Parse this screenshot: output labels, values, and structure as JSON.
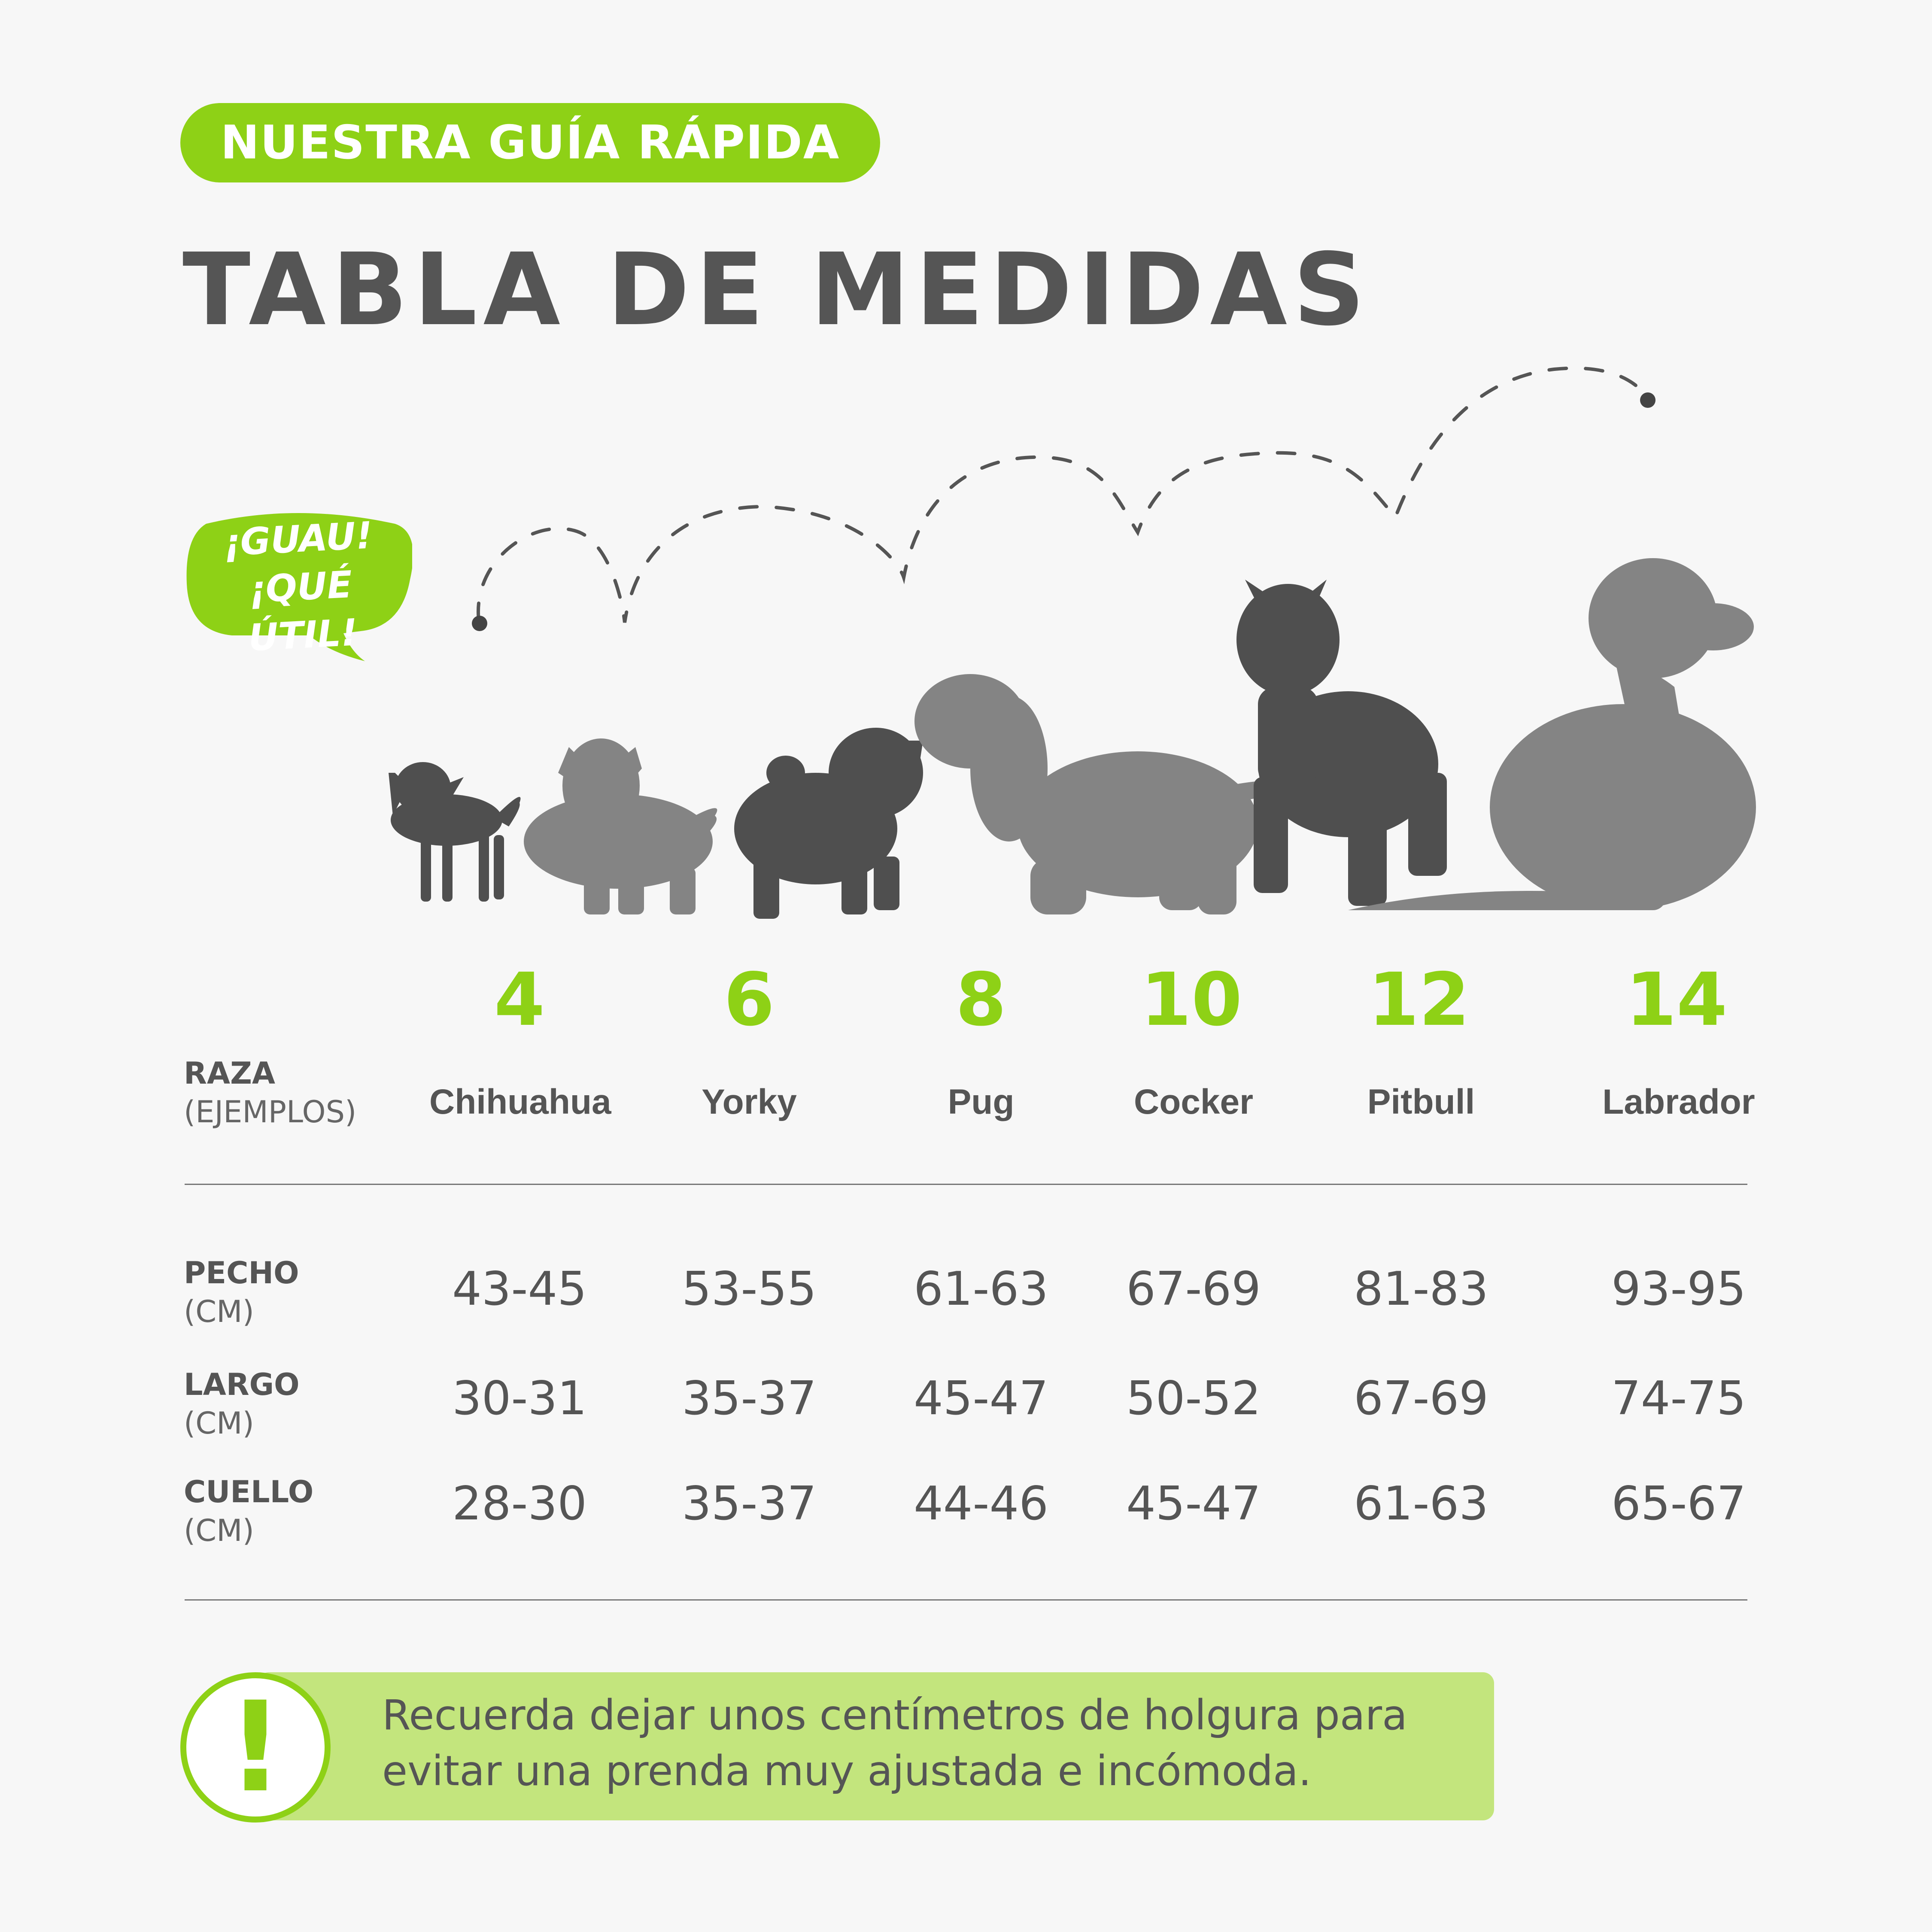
{
  "header": {
    "pill": "NUESTRA GUÍA RÁPIDA",
    "title": "TABLA DE MEDIDAS"
  },
  "bubble": {
    "line1": "¡GUAU!",
    "line2": "¡QUÉ ÚTIL!"
  },
  "sizes": [
    "4",
    "6",
    "8",
    "10",
    "12",
    "14"
  ],
  "raza": {
    "label": "RAZA",
    "sub": "(EJEMPLOS)",
    "breeds": [
      "Chihuahua",
      "Yorky",
      "Pug",
      "Cocker",
      "Pitbull",
      "Labrador"
    ]
  },
  "rows": [
    {
      "label": "PECHO",
      "unit": "(CM)",
      "values": [
        "43-45",
        "53-55",
        "61-63",
        "67-69",
        "81-83",
        "93-95"
      ]
    },
    {
      "label": "LARGO",
      "unit": "(CM)",
      "values": [
        "30-31",
        "35-37",
        "45-47",
        "50-52",
        "67-69",
        "74-75"
      ]
    },
    {
      "label": "CUELLO",
      "unit": "(CM)",
      "values": [
        "28-30",
        "35-37",
        "44-46",
        "45-47",
        "61-63",
        "65-67"
      ]
    }
  ],
  "note": {
    "icon": "exclamation-icon",
    "line1": "Recuerda dejar unos centímetros de holgura para",
    "line2": "evitar una prenda muy ajustada e incómoda."
  },
  "colors": {
    "accent": "#8ed116",
    "note_bg": "#c3e57d",
    "text": "#555555",
    "dog_dark": "#4f4f4f",
    "dog_light": "#838383"
  }
}
